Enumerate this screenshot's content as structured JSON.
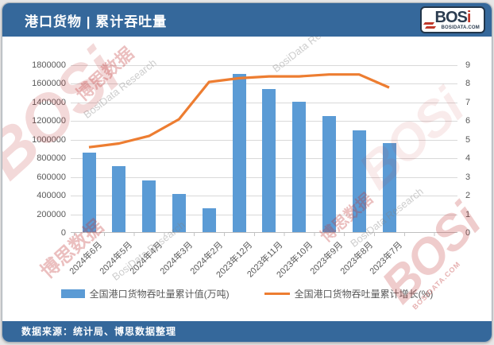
{
  "header": {
    "title": "港口货物 | 累计吞吐量"
  },
  "logo": {
    "text_main": "BOS",
    "text_accent": "i",
    "domain": "BOSIDATA.COM"
  },
  "footer": {
    "source": "数据来源：统计局、博思数据整理"
  },
  "watermarks": {
    "bosi": "BOSi",
    "research": "BosiData Research",
    "chinese": "博思数据",
    "domain": "BOSIDATA.COM"
  },
  "colors": {
    "header_bg": "#35689B",
    "bar": "#5B9BD5",
    "line": "#ED7D31",
    "gridline": "#D9D9D9",
    "axis_text": "#595959",
    "logo_accent": "#C0392B"
  },
  "chart_data": {
    "type": "bar",
    "combo": "bar+line",
    "title": "港口货物 | 累计吞吐量",
    "categories": [
      "2024年6月",
      "2024年5月",
      "2024年4月",
      "2024年3月",
      "2024年2月",
      "2023年12月",
      "2023年11月",
      "2023年10月",
      "2023年9月",
      "2023年8月",
      "2023年7月"
    ],
    "series": [
      {
        "name": "全国港口货物吞吐量累计值(万吨)",
        "type": "bar",
        "axis": "left",
        "color": "#5B9BD5",
        "values": [
          856000,
          708000,
          553000,
          406000,
          259000,
          1697000,
          1536000,
          1400000,
          1245000,
          1095000,
          958000
        ]
      },
      {
        "name": "全国港口货物吞吐量累计增长(%)",
        "type": "line",
        "axis": "right",
        "color": "#ED7D31",
        "values": [
          4.6,
          4.8,
          5.2,
          6.1,
          8.1,
          8.3,
          8.4,
          8.4,
          8.5,
          8.5,
          7.8
        ]
      }
    ],
    "left_axis": {
      "min": 0,
      "max": 1800000,
      "step": 200000
    },
    "right_axis": {
      "min": 0,
      "max": 9,
      "step": 1
    },
    "grid": true,
    "legend_position": "bottom",
    "xlabel": "",
    "ylabel": ""
  }
}
